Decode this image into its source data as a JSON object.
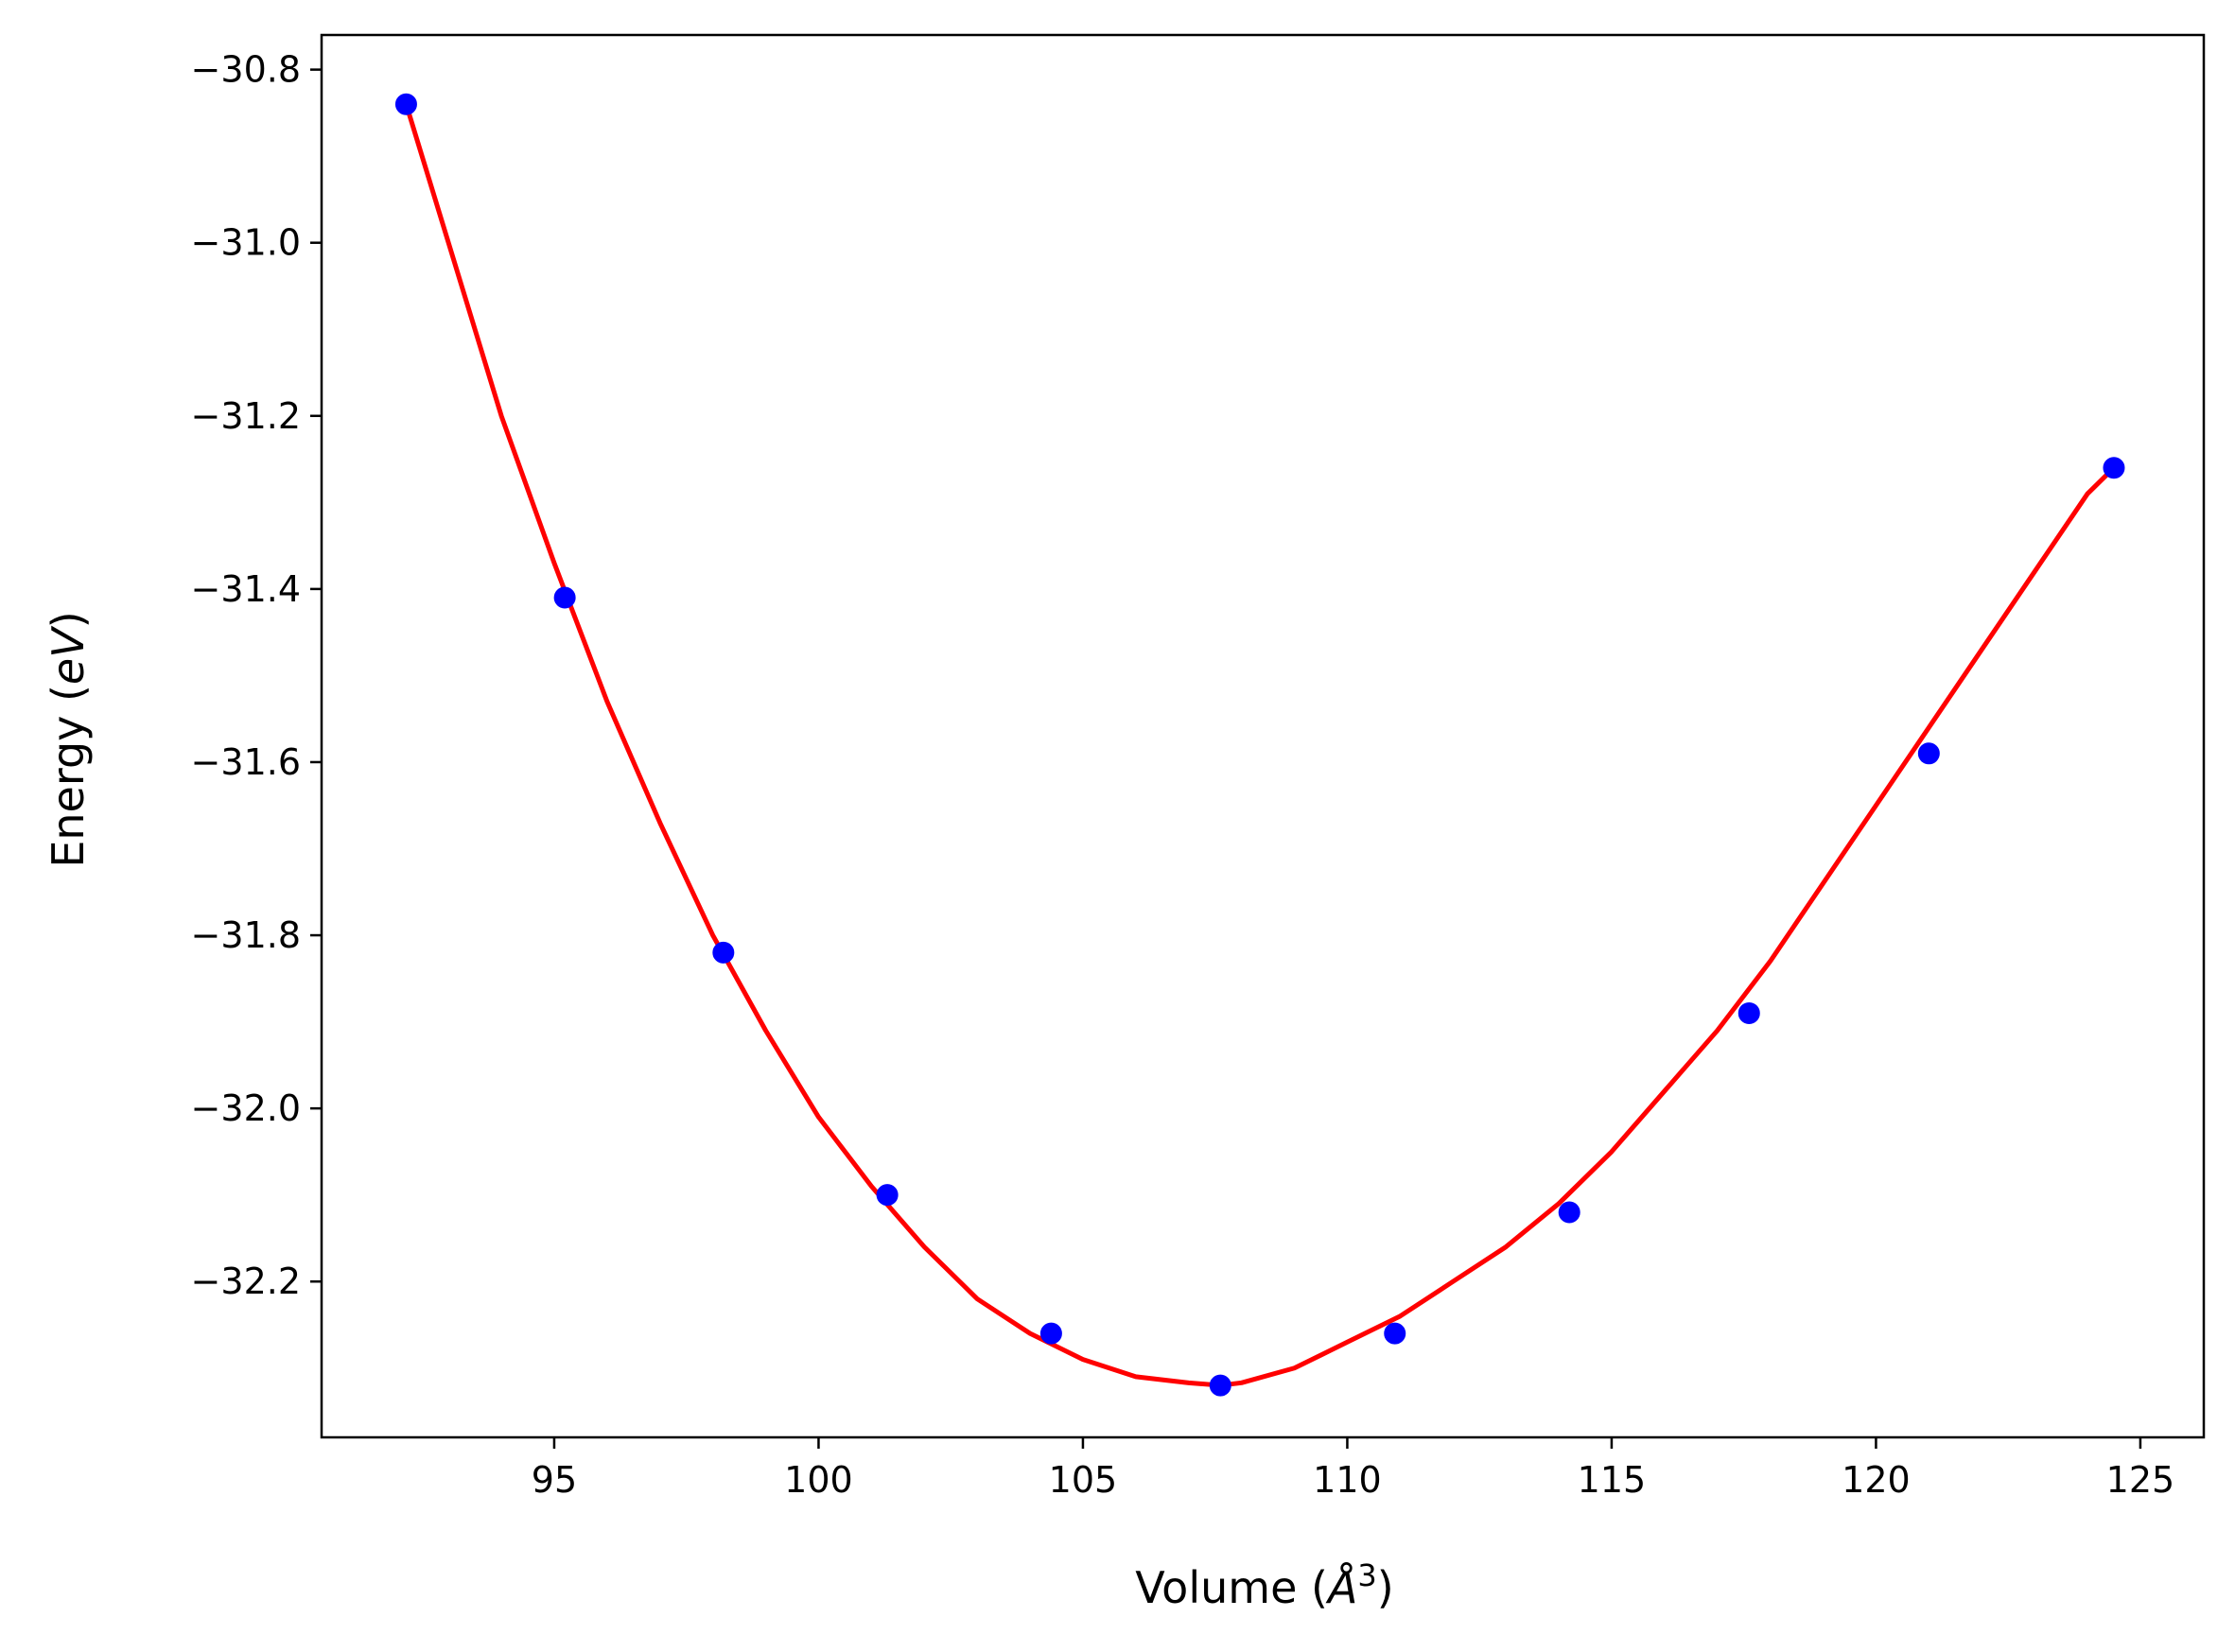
{
  "chart_data": {
    "type": "scatter",
    "title": "",
    "xlabel": "Volume (Å³)",
    "ylabel": "Energy (eV)",
    "xlabel_parts": {
      "prefix": "Volume (",
      "symbol": "Å",
      "sup": "3",
      "suffix": ")"
    },
    "ylabel_parts": {
      "prefix": "Energy (",
      "symbol": "eV",
      "suffix": ")"
    },
    "xlim": [
      90.6,
      126.2
    ],
    "ylim": [
      -32.38,
      -30.76
    ],
    "xticks": [
      95,
      100,
      105,
      110,
      115,
      120,
      125
    ],
    "xtick_labels": [
      "95",
      "100",
      "105",
      "110",
      "115",
      "120",
      "125"
    ],
    "yticks": [
      -30.8,
      -31.0,
      -31.2,
      -31.4,
      -31.6,
      -31.8,
      -32.0,
      -32.2
    ],
    "ytick_labels": [
      "−30.8",
      "−31.0",
      "−31.2",
      "−31.4",
      "−31.6",
      "−31.8",
      "−32.0",
      "−32.2"
    ],
    "grid": false,
    "series": [
      {
        "type": "scatter",
        "color": "#0000ff",
        "x": [
          92.2,
          95.2,
          98.2,
          101.3,
          104.4,
          107.6,
          110.9,
          114.2,
          117.6,
          121.0,
          124.5
        ],
        "y": [
          -30.84,
          -31.41,
          -31.82,
          -32.1,
          -32.26,
          -32.32,
          -32.26,
          -32.12,
          -31.89,
          -31.59,
          -31.26
        ]
      },
      {
        "type": "line",
        "color": "#ff0000",
        "x": [
          92.2,
          93.0,
          94.0,
          95.0,
          96.0,
          97.0,
          98.0,
          99.0,
          100.0,
          101.0,
          102.0,
          103.0,
          104.0,
          105.0,
          106.0,
          107.0,
          107.6,
          108.0,
          109.0,
          110.0,
          111.0,
          112.0,
          113.0,
          114.0,
          115.0,
          116.0,
          117.0,
          118.0,
          119.0,
          120.0,
          121.0,
          122.0,
          123.0,
          124.0,
          124.5
        ],
        "y": [
          -30.84,
          -31.0,
          -31.2,
          -31.37,
          -31.53,
          -31.67,
          -31.8,
          -31.91,
          -32.01,
          -32.09,
          -32.16,
          -32.22,
          -32.26,
          -32.29,
          -32.31,
          -32.317,
          -32.32,
          -32.317,
          -32.3,
          -32.27,
          -32.24,
          -32.2,
          -32.16,
          -32.11,
          -32.05,
          -31.98,
          -31.91,
          -31.83,
          -31.74,
          -31.65,
          -31.56,
          -31.47,
          -31.38,
          -31.29,
          -31.26
        ]
      }
    ]
  }
}
